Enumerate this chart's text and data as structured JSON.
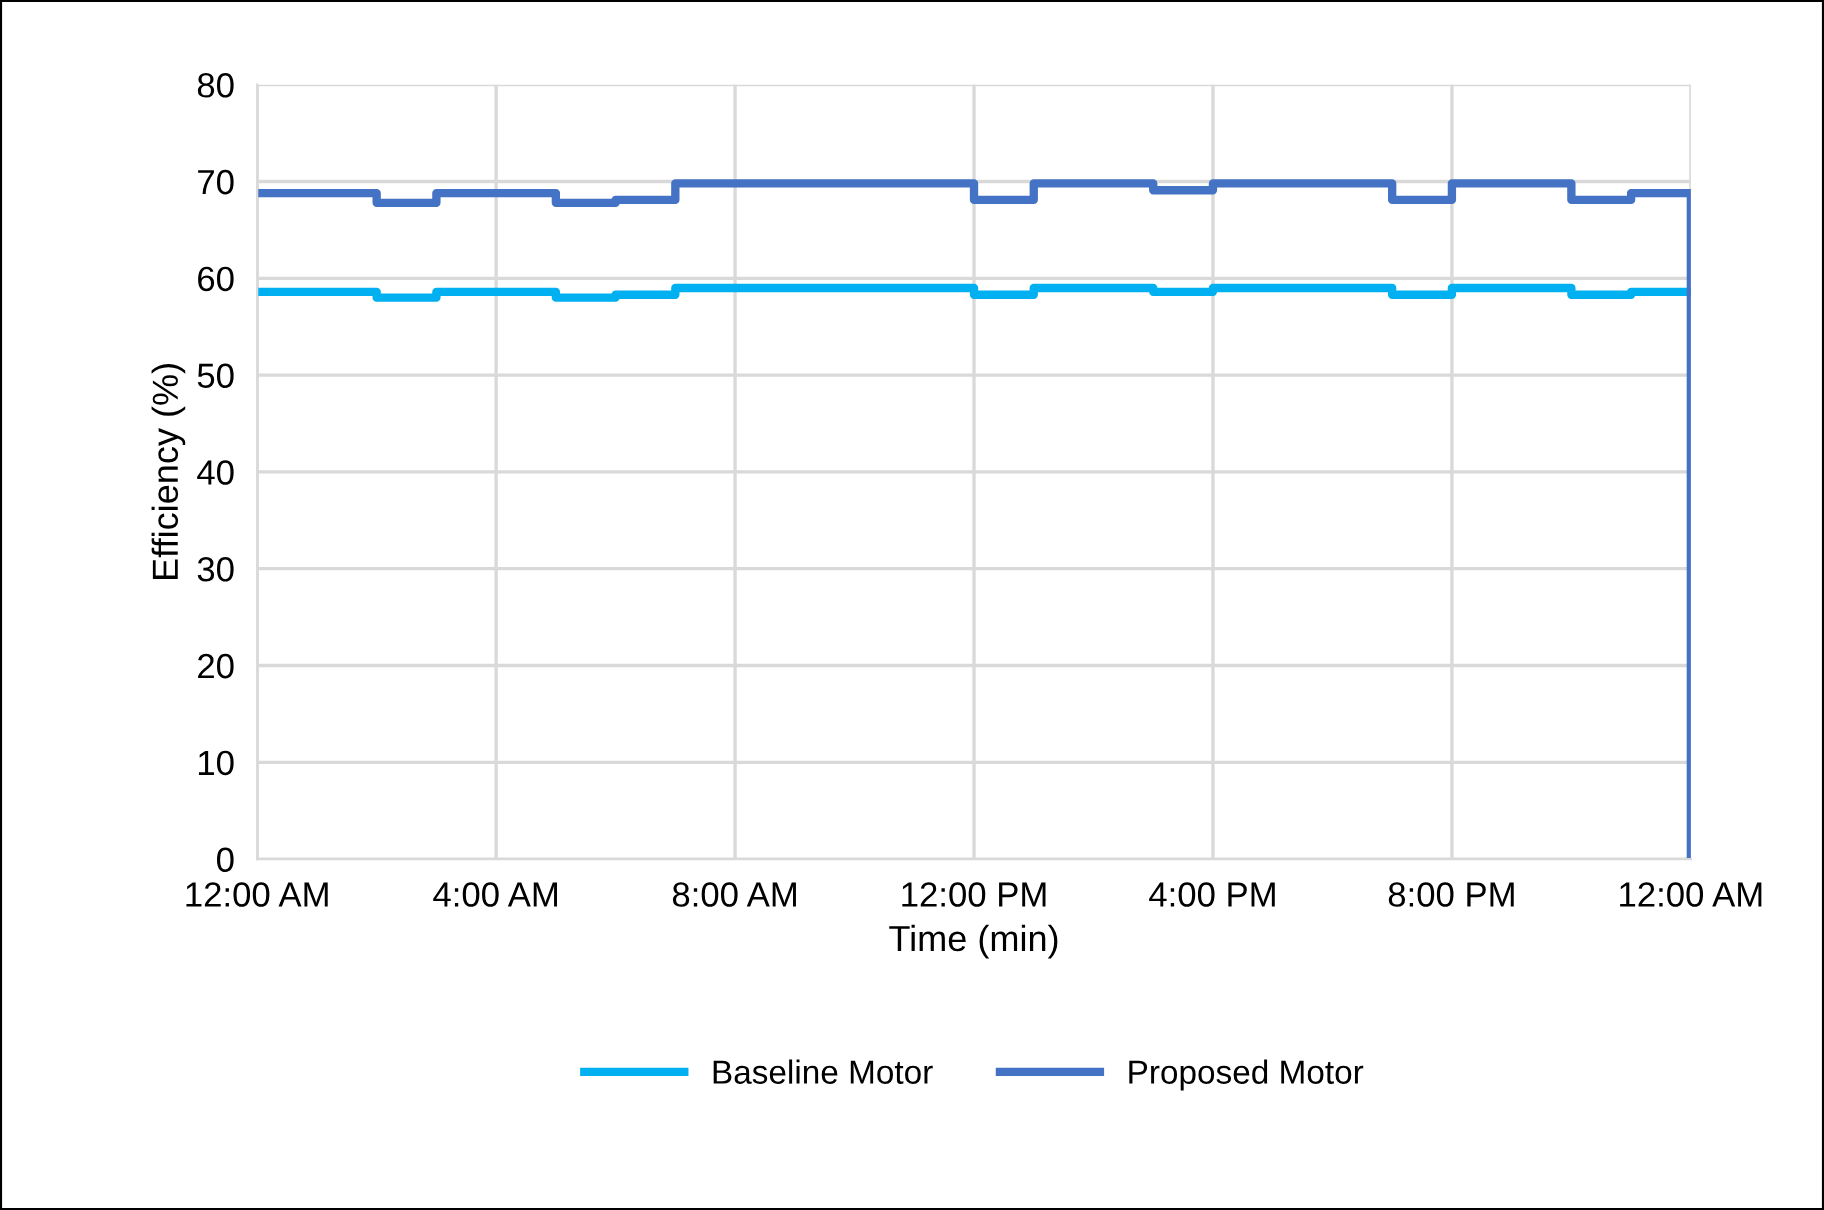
{
  "chart_data": {
    "type": "step",
    "xlabel": "Time (min)",
    "ylabel": "Efficiency (%)",
    "x": [
      0,
      1,
      2,
      3,
      4,
      5,
      6,
      7,
      8,
      9,
      10,
      11,
      12,
      13,
      14,
      15,
      16,
      17,
      18,
      19,
      20,
      21,
      22,
      23,
      24
    ],
    "series": [
      {
        "name": "Baseline Motor",
        "color": "#00b0f0",
        "values": [
          58.6,
          58.6,
          58.0,
          58.6,
          58.6,
          58.0,
          58.3,
          59.0,
          59.0,
          59.0,
          59.0,
          59.0,
          58.3,
          59.0,
          59.0,
          58.6,
          59.0,
          59.0,
          59.0,
          58.3,
          59.0,
          59.0,
          58.3,
          58.6,
          58.6
        ]
      },
      {
        "name": "Proposed Motor",
        "color": "#4472c4",
        "values": [
          68.8,
          68.8,
          67.8,
          68.8,
          68.8,
          67.8,
          68.1,
          69.8,
          69.8,
          69.8,
          69.8,
          69.8,
          68.1,
          69.8,
          69.8,
          69.1,
          69.8,
          69.8,
          69.8,
          68.1,
          69.8,
          69.8,
          68.1,
          68.8,
          0
        ]
      }
    ],
    "xlim": [
      0,
      24
    ],
    "xticks": [
      {
        "value": 0,
        "label": "12:00 AM"
      },
      {
        "value": 4,
        "label": "4:00 AM"
      },
      {
        "value": 8,
        "label": "8:00 AM"
      },
      {
        "value": 12,
        "label": "12:00 PM"
      },
      {
        "value": 16,
        "label": "4:00 PM"
      },
      {
        "value": 20,
        "label": "8:00 PM"
      },
      {
        "value": 24,
        "label": "12:00 AM"
      }
    ],
    "ylim": [
      0,
      80
    ],
    "yticks": [
      0,
      10,
      20,
      30,
      40,
      50,
      60,
      70,
      80
    ],
    "grid": true,
    "legend": "bottom"
  }
}
